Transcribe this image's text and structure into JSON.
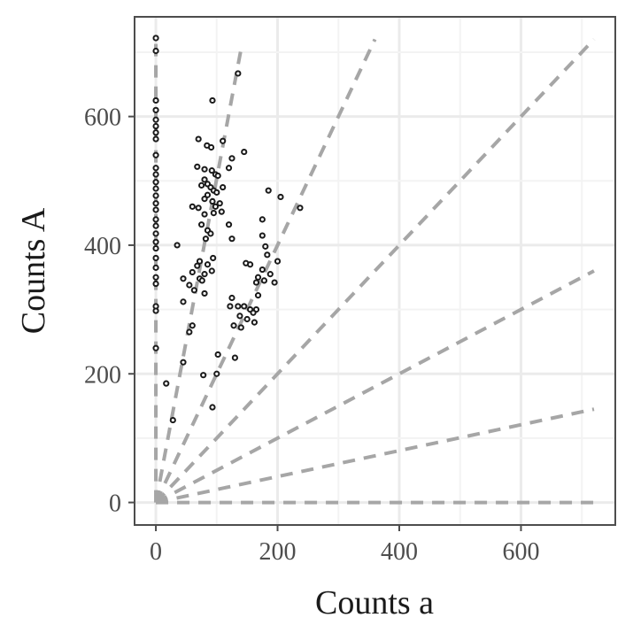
{
  "chart_data": {
    "type": "scatter",
    "title": "",
    "xlabel": "Counts a",
    "ylabel": "Counts A",
    "xlim": [
      -35,
      755
    ],
    "ylim": [
      -35,
      755
    ],
    "xticks": [
      0,
      200,
      400,
      600
    ],
    "yticks": [
      0,
      200,
      400,
      600
    ],
    "x_tick_labels": [
      "0",
      "200",
      "400",
      "600"
    ],
    "y_tick_labels": [
      "0",
      "200",
      "400",
      "600"
    ],
    "grid": true,
    "colors": {
      "points": "#1a1a1a",
      "reference_lines": "#a6a6a6",
      "grid_major": "#ebebeb",
      "grid_minor": "#f3f3f3",
      "panel_border": "#4d4d4d"
    },
    "reference_lines": [
      {
        "x": [
          0,
          0
        ],
        "y": [
          0,
          720
        ]
      },
      {
        "x": [
          0,
          140
        ],
        "y": [
          0,
          705
        ]
      },
      {
        "x": [
          0,
          360
        ],
        "y": [
          0,
          720
        ]
      },
      {
        "x": [
          0,
          720
        ],
        "y": [
          0,
          720
        ]
      },
      {
        "x": [
          0,
          720
        ],
        "y": [
          0,
          360
        ]
      },
      {
        "x": [
          0,
          720
        ],
        "y": [
          0,
          145
        ]
      },
      {
        "x": [
          0,
          720
        ],
        "y": [
          0,
          0
        ]
      }
    ],
    "points": [
      {
        "x": 0,
        "y": 722
      },
      {
        "x": 0,
        "y": 702
      },
      {
        "x": 0,
        "y": 625
      },
      {
        "x": 0,
        "y": 610
      },
      {
        "x": 0,
        "y": 595
      },
      {
        "x": 0,
        "y": 585
      },
      {
        "x": 0,
        "y": 575
      },
      {
        "x": 0,
        "y": 565
      },
      {
        "x": 0,
        "y": 540
      },
      {
        "x": 0,
        "y": 520
      },
      {
        "x": 0,
        "y": 510
      },
      {
        "x": 0,
        "y": 498
      },
      {
        "x": 0,
        "y": 488
      },
      {
        "x": 0,
        "y": 477
      },
      {
        "x": 0,
        "y": 465
      },
      {
        "x": 0,
        "y": 455
      },
      {
        "x": 0,
        "y": 440
      },
      {
        "x": 0,
        "y": 430
      },
      {
        "x": 0,
        "y": 418
      },
      {
        "x": 0,
        "y": 405
      },
      {
        "x": 0,
        "y": 395
      },
      {
        "x": 0,
        "y": 380
      },
      {
        "x": 0,
        "y": 365
      },
      {
        "x": 0,
        "y": 350
      },
      {
        "x": 0,
        "y": 340
      },
      {
        "x": 0,
        "y": 305
      },
      {
        "x": 0,
        "y": 298
      },
      {
        "x": 0,
        "y": 240
      },
      {
        "x": 135,
        "y": 667
      },
      {
        "x": 93,
        "y": 625
      },
      {
        "x": 70,
        "y": 565
      },
      {
        "x": 84,
        "y": 555
      },
      {
        "x": 91,
        "y": 552
      },
      {
        "x": 110,
        "y": 562
      },
      {
        "x": 145,
        "y": 545
      },
      {
        "x": 125,
        "y": 535
      },
      {
        "x": 68,
        "y": 522
      },
      {
        "x": 80,
        "y": 518
      },
      {
        "x": 92,
        "y": 516
      },
      {
        "x": 120,
        "y": 520
      },
      {
        "x": 98,
        "y": 510
      },
      {
        "x": 102,
        "y": 508
      },
      {
        "x": 80,
        "y": 502
      },
      {
        "x": 85,
        "y": 495
      },
      {
        "x": 75,
        "y": 493
      },
      {
        "x": 90,
        "y": 490
      },
      {
        "x": 95,
        "y": 485
      },
      {
        "x": 110,
        "y": 490
      },
      {
        "x": 100,
        "y": 482
      },
      {
        "x": 85,
        "y": 478
      },
      {
        "x": 80,
        "y": 472
      },
      {
        "x": 93,
        "y": 468
      },
      {
        "x": 105,
        "y": 465
      },
      {
        "x": 60,
        "y": 460
      },
      {
        "x": 70,
        "y": 458
      },
      {
        "x": 98,
        "y": 460
      },
      {
        "x": 185,
        "y": 485
      },
      {
        "x": 205,
        "y": 475
      },
      {
        "x": 237,
        "y": 458
      },
      {
        "x": 80,
        "y": 448
      },
      {
        "x": 95,
        "y": 450
      },
      {
        "x": 108,
        "y": 452
      },
      {
        "x": 120,
        "y": 432
      },
      {
        "x": 75,
        "y": 432
      },
      {
        "x": 85,
        "y": 423
      },
      {
        "x": 90,
        "y": 418
      },
      {
        "x": 82,
        "y": 410
      },
      {
        "x": 125,
        "y": 410
      },
      {
        "x": 175,
        "y": 440
      },
      {
        "x": 175,
        "y": 415
      },
      {
        "x": 180,
        "y": 398
      },
      {
        "x": 183,
        "y": 385
      },
      {
        "x": 35,
        "y": 400
      },
      {
        "x": 94,
        "y": 380
      },
      {
        "x": 72,
        "y": 375
      },
      {
        "x": 68,
        "y": 368
      },
      {
        "x": 85,
        "y": 370
      },
      {
        "x": 148,
        "y": 372
      },
      {
        "x": 155,
        "y": 370
      },
      {
        "x": 200,
        "y": 375
      },
      {
        "x": 175,
        "y": 362
      },
      {
        "x": 60,
        "y": 358
      },
      {
        "x": 92,
        "y": 360
      },
      {
        "x": 80,
        "y": 355
      },
      {
        "x": 72,
        "y": 348
      },
      {
        "x": 76,
        "y": 345
      },
      {
        "x": 45,
        "y": 348
      },
      {
        "x": 55,
        "y": 338
      },
      {
        "x": 168,
        "y": 350
      },
      {
        "x": 188,
        "y": 355
      },
      {
        "x": 195,
        "y": 342
      },
      {
        "x": 178,
        "y": 345
      },
      {
        "x": 165,
        "y": 342
      },
      {
        "x": 80,
        "y": 325
      },
      {
        "x": 63,
        "y": 330
      },
      {
        "x": 125,
        "y": 318
      },
      {
        "x": 168,
        "y": 322
      },
      {
        "x": 45,
        "y": 312
      },
      {
        "x": 122,
        "y": 305
      },
      {
        "x": 135,
        "y": 305
      },
      {
        "x": 145,
        "y": 305
      },
      {
        "x": 155,
        "y": 300
      },
      {
        "x": 165,
        "y": 300
      },
      {
        "x": 160,
        "y": 295
      },
      {
        "x": 138,
        "y": 290
      },
      {
        "x": 150,
        "y": 285
      },
      {
        "x": 162,
        "y": 280
      },
      {
        "x": 128,
        "y": 275
      },
      {
        "x": 140,
        "y": 272
      },
      {
        "x": 60,
        "y": 275
      },
      {
        "x": 55,
        "y": 265
      },
      {
        "x": 102,
        "y": 230
      },
      {
        "x": 130,
        "y": 225
      },
      {
        "x": 45,
        "y": 218
      },
      {
        "x": 100,
        "y": 200
      },
      {
        "x": 78,
        "y": 198
      },
      {
        "x": 17,
        "y": 185
      },
      {
        "x": 93,
        "y": 148
      },
      {
        "x": 28,
        "y": 128
      }
    ]
  }
}
